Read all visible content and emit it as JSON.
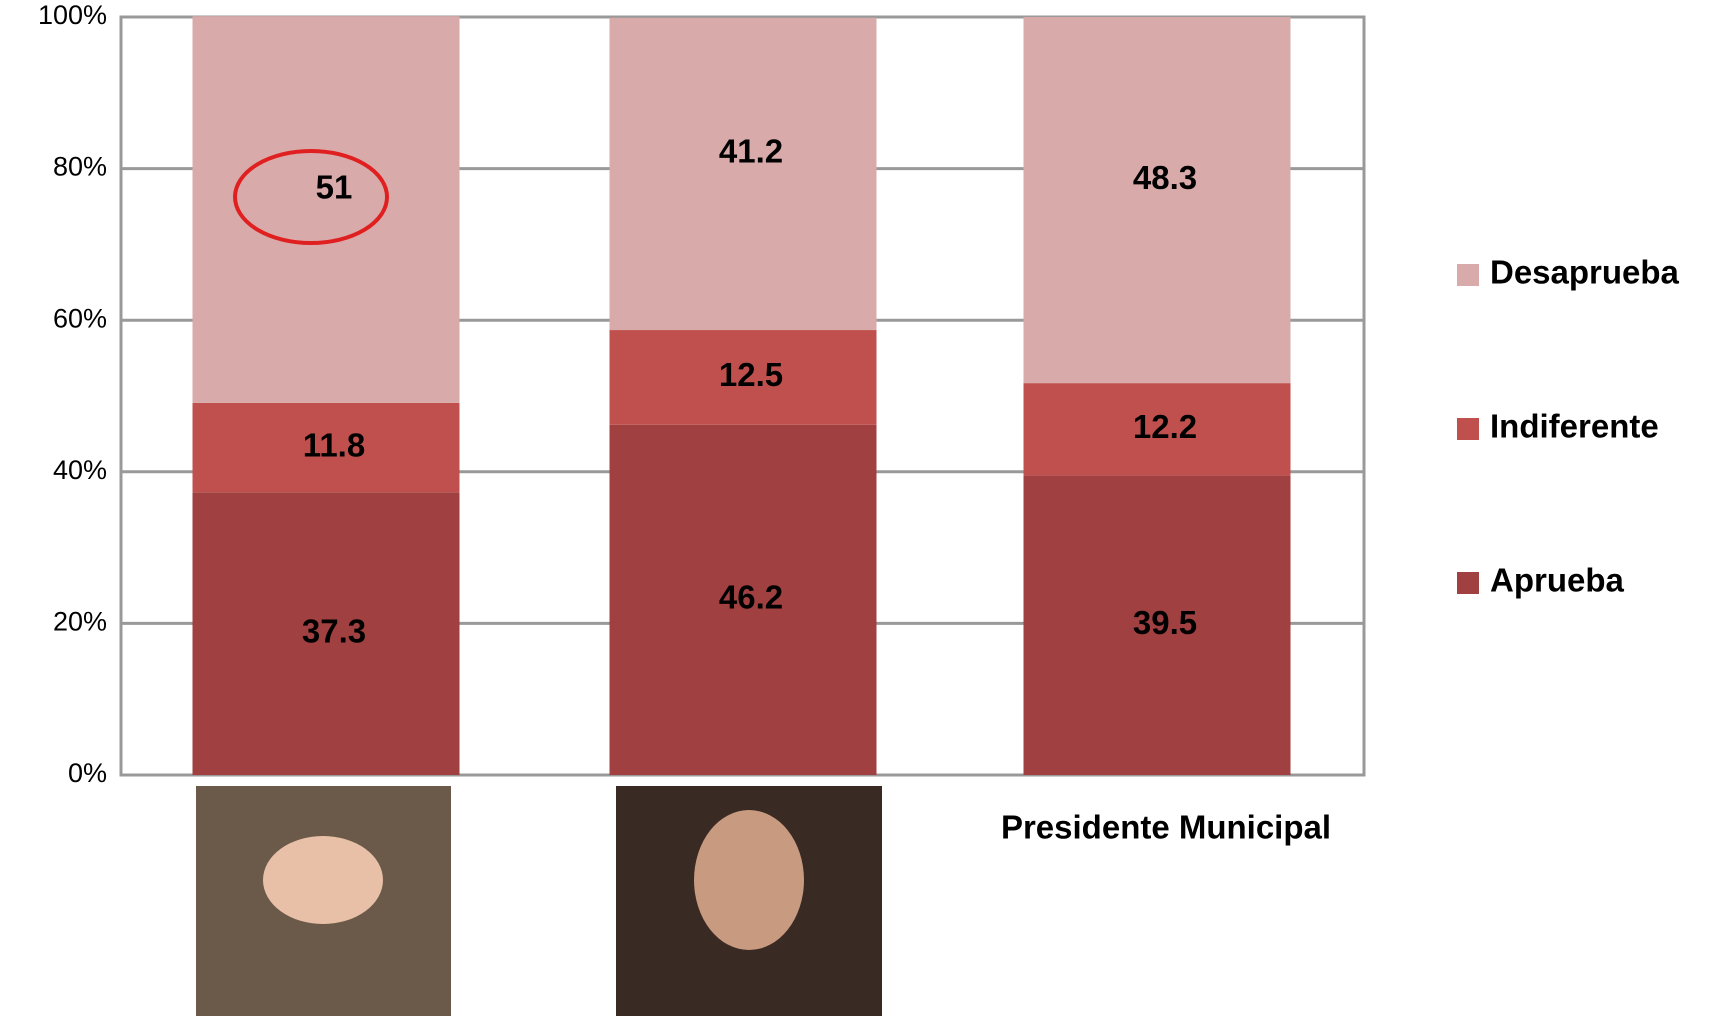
{
  "chart_data": {
    "type": "stacked_bar",
    "categories": [
      null,
      null,
      "Presidente Municipal"
    ],
    "series": [
      {
        "name": "Aprueba",
        "color": "#a04040",
        "values": [
          37.3,
          46.2,
          39.5
        ]
      },
      {
        "name": "Indiferente",
        "color": "#c0504d",
        "values": [
          11.8,
          12.5,
          12.2
        ]
      },
      {
        "name": "Desaprueba",
        "color": "#d9aaaa",
        "values": [
          51,
          41.2,
          48.3
        ]
      }
    ],
    "ylim": [
      0,
      100
    ],
    "yticks": [
      {
        "value": 0,
        "label": "0%"
      },
      {
        "value": 20,
        "label": "20%"
      },
      {
        "value": 40,
        "label": "40%"
      },
      {
        "value": 60,
        "label": "60%"
      },
      {
        "value": 80,
        "label": "80%"
      },
      {
        "value": 100,
        "label": "100%"
      }
    ],
    "grid": true,
    "legend": "right"
  }
}
